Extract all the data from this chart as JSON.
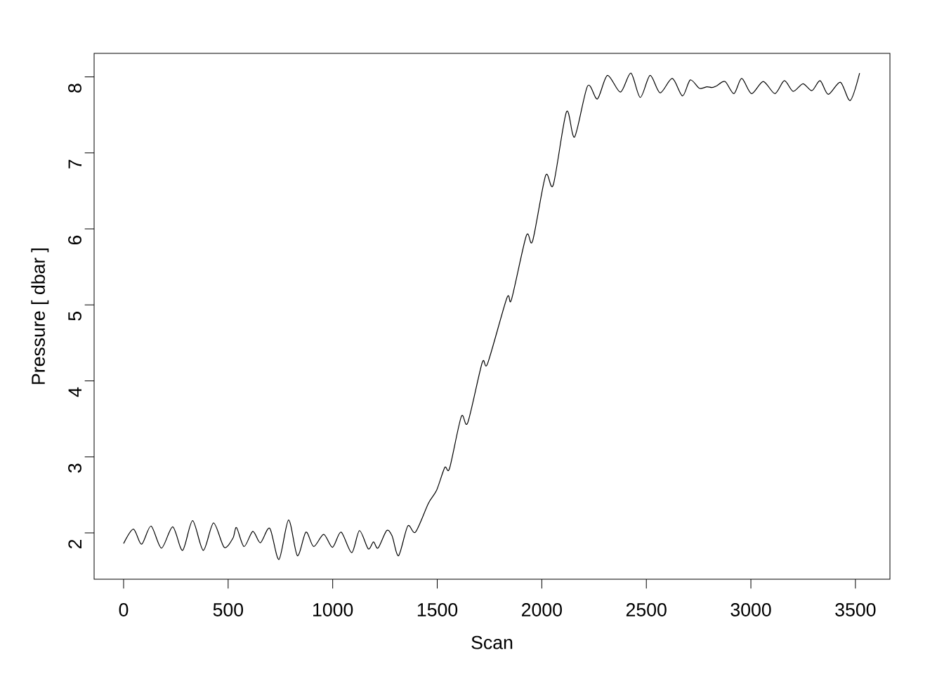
{
  "chart_data": {
    "type": "line",
    "xlabel": "Scan",
    "ylabel": "Pressure [ dbar ]",
    "xlim": [
      -141,
      3665
    ],
    "ylim": [
      1.39,
      8.31
    ],
    "xticks": [
      0,
      500,
      1000,
      1500,
      2000,
      2500,
      3000,
      3500
    ],
    "yticks": [
      2,
      3,
      4,
      5,
      6,
      7,
      8
    ],
    "grid": false,
    "marker": "none",
    "line_style": "solid",
    "series": [
      {
        "color": "#000000",
        "x": [
          0,
          47,
          86,
          131,
          181,
          235,
          282,
          330,
          381,
          430,
          481,
          523,
          540,
          576,
          618,
          654,
          699,
          743,
          789,
          831,
          872,
          909,
          957,
          999,
          1040,
          1091,
          1128,
          1170,
          1195,
          1217,
          1258,
          1284,
          1315,
          1359,
          1396,
          1458,
          1497,
          1536,
          1559,
          1615,
          1646,
          1715,
          1741,
          1833,
          1855,
          1926,
          1956,
          2018,
          2055,
          2118,
          2157,
          2219,
          2266,
          2314,
          2376,
          2426,
          2471,
          2518,
          2566,
          2624,
          2673,
          2710,
          2754,
          2790,
          2813,
          2835,
          2876,
          2919,
          2956,
          3003,
          3059,
          3115,
          3160,
          3202,
          3249,
          3292,
          3331,
          3370,
          3428,
          3475,
          3520
        ],
        "values": [
          1.86,
          2.05,
          1.85,
          2.09,
          1.8,
          2.08,
          1.77,
          2.16,
          1.77,
          2.13,
          1.81,
          1.93,
          2.07,
          1.82,
          2.02,
          1.87,
          2.06,
          1.65,
          2.17,
          1.7,
          2.01,
          1.82,
          1.98,
          1.81,
          2.01,
          1.74,
          2.03,
          1.79,
          1.88,
          1.8,
          2.03,
          1.96,
          1.7,
          2.09,
          2.01,
          2.39,
          2.56,
          2.86,
          2.85,
          3.53,
          3.45,
          4.24,
          4.23,
          5.09,
          5.07,
          5.91,
          5.84,
          6.7,
          6.58,
          7.54,
          7.21,
          7.88,
          7.71,
          8.02,
          7.8,
          8.05,
          7.73,
          8.02,
          7.79,
          7.98,
          7.75,
          7.96,
          7.85,
          7.87,
          7.86,
          7.88,
          7.94,
          7.78,
          7.98,
          7.78,
          7.94,
          7.78,
          7.95,
          7.81,
          7.91,
          7.82,
          7.95,
          7.77,
          7.93,
          7.69,
          8.05
        ]
      }
    ]
  }
}
